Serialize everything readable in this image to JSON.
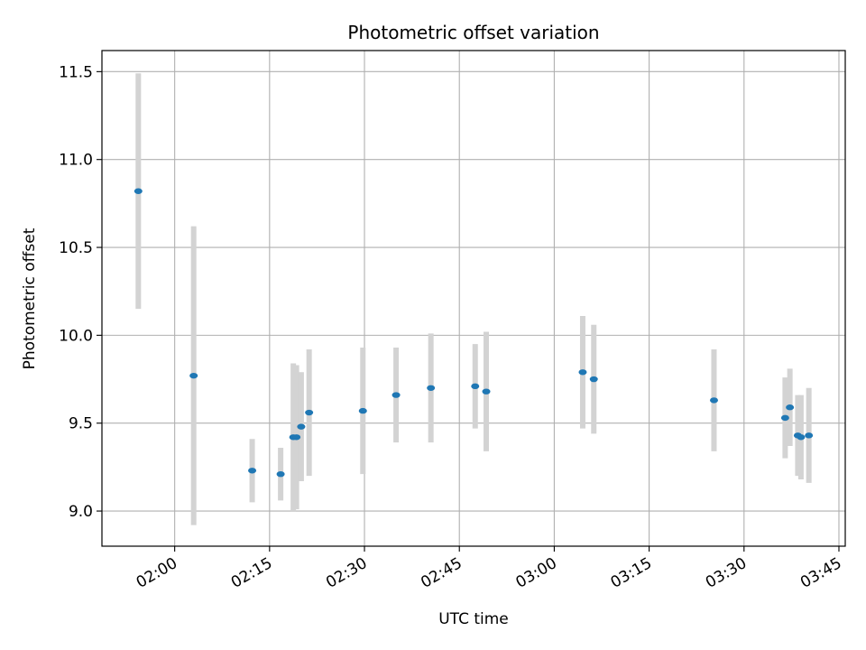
{
  "chart_data": {
    "type": "scatter",
    "title": "Photometric offset variation",
    "xlabel": "UTC time",
    "ylabel": "Photometric offset",
    "grid": true,
    "x_tick_labels": [
      "02:00",
      "02:15",
      "02:30",
      "02:45",
      "03:00",
      "03:15",
      "03:30",
      "03:45"
    ],
    "y_tick_labels": [
      "9.0",
      "9.5",
      "10.0",
      "10.5",
      "11.0",
      "11.5"
    ],
    "xlim": [
      "01:48:30",
      "03:46:00"
    ],
    "ylim": [
      8.8,
      11.62
    ],
    "point_color": "#1f77b4",
    "errorbar_color": "#d3d3d3",
    "points": [
      {
        "t": "01:54:15",
        "y": 10.82,
        "err": 0.67
      },
      {
        "t": "02:03:00",
        "y": 9.77,
        "err": 0.85
      },
      {
        "t": "02:12:15",
        "y": 9.23,
        "err": 0.18
      },
      {
        "t": "02:16:45",
        "y": 9.21,
        "err": 0.15
      },
      {
        "t": "02:18:45",
        "y": 9.42,
        "err": 0.42
      },
      {
        "t": "02:19:15",
        "y": 9.42,
        "err": 0.41
      },
      {
        "t": "02:20:00",
        "y": 9.48,
        "err": 0.31
      },
      {
        "t": "02:21:15",
        "y": 9.56,
        "err": 0.36
      },
      {
        "t": "02:29:45",
        "y": 9.57,
        "err": 0.36
      },
      {
        "t": "02:35:00",
        "y": 9.66,
        "err": 0.27
      },
      {
        "t": "02:40:30",
        "y": 9.7,
        "err": 0.31
      },
      {
        "t": "02:47:30",
        "y": 9.71,
        "err": 0.24
      },
      {
        "t": "02:49:15",
        "y": 9.68,
        "err": 0.34
      },
      {
        "t": "03:04:30",
        "y": 9.79,
        "err": 0.32
      },
      {
        "t": "03:06:15",
        "y": 9.75,
        "err": 0.31
      },
      {
        "t": "03:25:15",
        "y": 9.63,
        "err": 0.29
      },
      {
        "t": "03:36:30",
        "y": 9.53,
        "err": 0.23
      },
      {
        "t": "03:37:15",
        "y": 9.59,
        "err": 0.22
      },
      {
        "t": "03:38:30",
        "y": 9.43,
        "err": 0.23
      },
      {
        "t": "03:39:00",
        "y": 9.42,
        "err": 0.24
      },
      {
        "t": "03:40:15",
        "y": 9.43,
        "err": 0.27
      }
    ]
  }
}
